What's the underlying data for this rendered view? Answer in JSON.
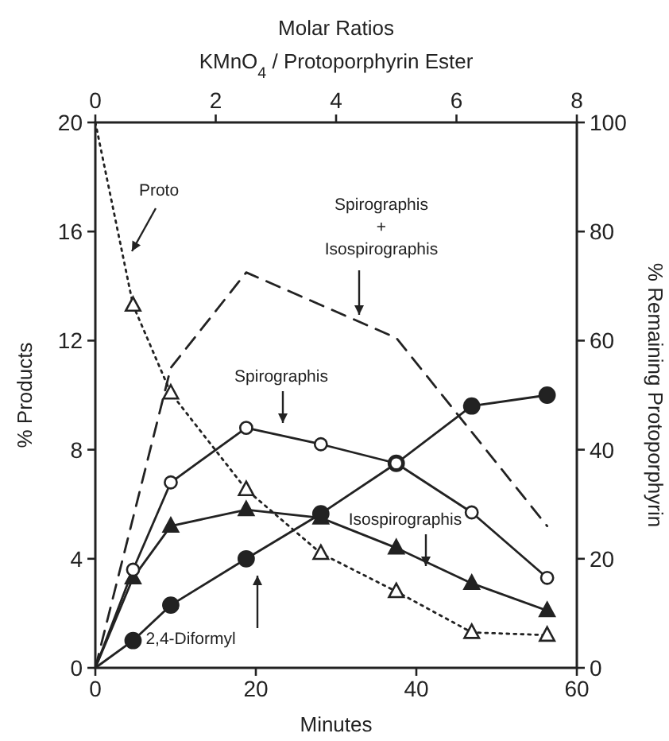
{
  "chart_data": {
    "type": "line",
    "title": "Molar Ratios",
    "x2label": "KMnO$_{4}$ / Protoporphyrin Ester",
    "xlabel": "Minutes",
    "ylabel": "% Products",
    "y2label": "% Remaining Protoporphyrin",
    "x": [
      0,
      4.7,
      9.4,
      18.8,
      28.1,
      37.5,
      46.9,
      56.3
    ],
    "xlim": [
      0,
      60
    ],
    "xticks": [
      0,
      20,
      40,
      60
    ],
    "x2lim": [
      0,
      8
    ],
    "x2ticks": [
      0,
      2,
      4,
      6,
      8
    ],
    "ylim": [
      0,
      20
    ],
    "yticks": [
      0,
      4,
      8,
      12,
      16,
      20
    ],
    "y2lim": [
      0,
      100
    ],
    "y2ticks": [
      0,
      20,
      40,
      60,
      80,
      100
    ],
    "grid": false,
    "series": [
      {
        "name": "Proto",
        "color": "#222222",
        "axis": "y2",
        "line_style": "dotted",
        "marker": "triangle-open",
        "values": [
          100,
          66.5,
          50.4,
          32.7,
          21,
          14,
          6.5,
          6
        ]
      },
      {
        "name": "Spirographis\n+\nIsospirographis",
        "color": "#222222",
        "line_style": "dashed",
        "marker": "none",
        "x": [
          0,
          9.4,
          18.8,
          37.5,
          56.3
        ],
        "values": [
          0,
          11,
          14.5,
          12.1,
          5.2
        ]
      },
      {
        "name": "Spirographis",
        "color": "#222222",
        "line_style": "solid",
        "marker": "circle-open",
        "values": [
          0,
          3.6,
          6.8,
          8.8,
          8.2,
          7.5,
          5.7,
          3.3
        ]
      },
      {
        "name": "Isospirographis",
        "color": "#222222",
        "line_style": "solid",
        "marker": "triangle",
        "values": [
          0,
          3.3,
          5.2,
          5.8,
          5.5,
          4.4,
          3.1,
          2.1
        ]
      },
      {
        "name": "2,4-Diformyl",
        "color": "#222222",
        "line_style": "solid",
        "marker": "circle",
        "values": [
          0,
          1,
          2.3,
          4,
          5.65,
          7.5,
          9.6,
          10
        ]
      }
    ]
  }
}
